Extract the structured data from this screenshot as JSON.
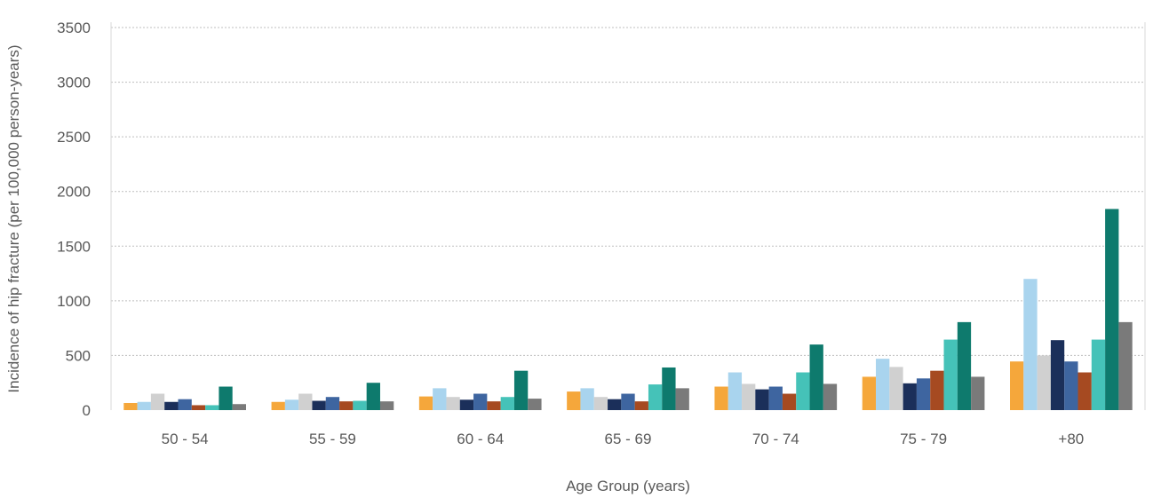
{
  "chart_data": {
    "type": "bar",
    "title": "",
    "xlabel": "Age Group (years)",
    "ylabel": "Incidence of hip fracture (per 100,000 person-years)",
    "ylim": [
      0,
      3500
    ],
    "yticks": [
      0,
      500,
      1000,
      1500,
      2000,
      2500,
      3000,
      3500
    ],
    "grid": true,
    "legend": "none",
    "categories": [
      "50 - 54",
      "55 - 59",
      "60 - 64",
      "65 - 69",
      "70 - 74",
      "75 - 79",
      "+80"
    ],
    "series": [
      {
        "color": "#F5A73B",
        "values": [
          65,
          75,
          125,
          170,
          215,
          305,
          445
        ]
      },
      {
        "color": "#A9D4EE",
        "values": [
          75,
          95,
          200,
          200,
          345,
          470,
          1200
        ]
      },
      {
        "color": "#D0D0D0",
        "values": [
          150,
          150,
          120,
          120,
          240,
          395,
          500
        ]
      },
      {
        "color": "#1B2F5A",
        "values": [
          75,
          85,
          95,
          100,
          190,
          245,
          640
        ]
      },
      {
        "color": "#3E65A0",
        "values": [
          100,
          120,
          150,
          150,
          215,
          290,
          445
        ]
      },
      {
        "color": "#A64A21",
        "values": [
          45,
          80,
          80,
          80,
          150,
          360,
          345
        ]
      },
      {
        "color": "#45C2B8",
        "values": [
          45,
          85,
          120,
          235,
          345,
          645,
          645
        ]
      },
      {
        "color": "#0E7A6D",
        "values": [
          215,
          250,
          360,
          390,
          600,
          805,
          1840
        ]
      },
      {
        "color": "#7A7A7A",
        "values": [
          55,
          80,
          105,
          200,
          240,
          305,
          805
        ]
      }
    ]
  }
}
